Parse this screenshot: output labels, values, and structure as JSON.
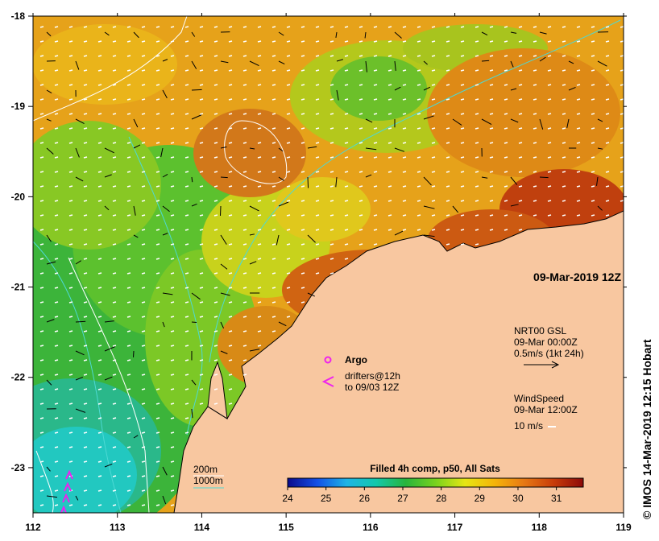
{
  "map": {
    "date_label": "09-Mar-2019 12Z",
    "product_label": "Filled 4h comp, p50, All Sats",
    "credit": "© IMOS 14-Mar-2019 12:15 Hobart",
    "colors": {
      "land": "#f8c7a0",
      "isobath_200": "#ffffff",
      "isobath_1000": "#4dd9d4",
      "argo": "#ee22ee",
      "drifter": "#ee22ee"
    }
  },
  "chart_data": {
    "type": "heatmap",
    "xaxis": {
      "ticks": [
        "112",
        "113",
        "114",
        "115",
        "116",
        "117",
        "118",
        "119"
      ],
      "range": [
        112,
        119
      ]
    },
    "yaxis": {
      "ticks": [
        "-18",
        "-19",
        "-20",
        "-21",
        "-22",
        "-23"
      ],
      "range": [
        -23.5,
        -18
      ]
    },
    "colorbar": {
      "title": "Filled 4h comp, p50, All Sats",
      "ticks": [
        "24",
        "25",
        "26",
        "27",
        "28",
        "29",
        "30",
        "31"
      ],
      "range": [
        24,
        31.7
      ],
      "colors": [
        "#0a0a8c",
        "#1450e6",
        "#1eb4e6",
        "#14c8aa",
        "#28b43c",
        "#78d21e",
        "#e6e614",
        "#f5b40a",
        "#e67814",
        "#c83c0a",
        "#8c0a0a"
      ]
    },
    "legend": {
      "argo": "Argo",
      "drifters_line1": "drifters@12h",
      "drifters_line2": "to 09/03 12Z",
      "isobath_200": "200m",
      "isobath_1000": "1000m",
      "current": {
        "title": "NRT00 GSL",
        "time": "09-Mar 00:00Z",
        "scale": "0.5m/s (1kt 24h)"
      },
      "wind": {
        "title": "WindSpeed",
        "time": "09-Mar 12:00Z",
        "scale": "10 m/s"
      }
    }
  }
}
